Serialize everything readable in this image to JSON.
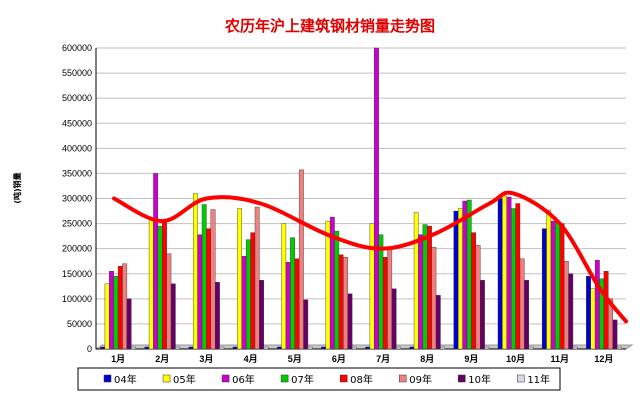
{
  "chart_data": {
    "type": "bar",
    "title": "农历年沪上建筑钢材销量走势图",
    "ylabel": "(吨)销量",
    "xlabel": "",
    "categories": [
      "1月",
      "2月",
      "3月",
      "4月",
      "5月",
      "6月",
      "7月",
      "8月",
      "9月",
      "10月",
      "11月",
      "12月"
    ],
    "ylim": [
      0,
      600000
    ],
    "yticks": [
      "0",
      "50000",
      "100000",
      "150000",
      "200000",
      "250000",
      "300000",
      "350000",
      "400000",
      "450000",
      "500000",
      "550000",
      "600000"
    ],
    "grid": true,
    "legend_position": "bottom",
    "series": [
      {
        "name": "04年",
        "color": "#0000cc",
        "values": [
          0,
          0,
          0,
          0,
          0,
          0,
          0,
          0,
          275000,
          300000,
          240000,
          145000
        ]
      },
      {
        "name": "05年",
        "color": "#ffff00",
        "values": [
          130000,
          260000,
          310000,
          280000,
          250000,
          255000,
          250000,
          272000,
          280000,
          305000,
          277000,
          120000
        ]
      },
      {
        "name": "06年",
        "color": "#cc00cc",
        "values": [
          155000,
          350000,
          228000,
          185000,
          173000,
          263000,
          600000,
          228000,
          295000,
          303000,
          255000,
          177000
        ]
      },
      {
        "name": "07年",
        "color": "#00cc00",
        "values": [
          145000,
          245000,
          288000,
          218000,
          222000,
          235000,
          228000,
          248000,
          297000,
          280000,
          253000,
          140000
        ]
      },
      {
        "name": "08年",
        "color": "#ff0000",
        "values": [
          165000,
          255000,
          240000,
          232000,
          180000,
          188000,
          183000,
          245000,
          232000,
          290000,
          250000,
          155000
        ]
      },
      {
        "name": "09年",
        "color": "#f08080",
        "values": [
          170000,
          190000,
          278000,
          283000,
          357000,
          183000,
          200000,
          203000,
          207000,
          180000,
          175000,
          100000
        ]
      },
      {
        "name": "10年",
        "color": "#660066",
        "values": [
          100000,
          130000,
          133000,
          137000,
          98000,
          110000,
          120000,
          107000,
          137000,
          137000,
          150000,
          58000
        ]
      },
      {
        "name": "11年",
        "color": "#d8d8e8",
        "values": [
          0,
          0,
          0,
          0,
          0,
          0,
          0,
          0,
          0,
          0,
          0,
          0
        ]
      }
    ],
    "trend_line_color": "#ff0000"
  }
}
